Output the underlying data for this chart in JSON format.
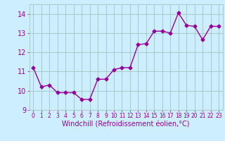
{
  "x": [
    0,
    1,
    2,
    3,
    4,
    5,
    6,
    7,
    8,
    9,
    10,
    11,
    12,
    13,
    14,
    15,
    16,
    17,
    18,
    19,
    20,
    21,
    22,
    23
  ],
  "y": [
    11.2,
    10.2,
    10.3,
    9.9,
    9.9,
    9.9,
    9.55,
    9.55,
    10.6,
    10.6,
    11.1,
    11.2,
    11.2,
    12.4,
    12.45,
    13.1,
    13.1,
    13.0,
    14.05,
    13.4,
    13.35,
    12.65,
    13.35,
    13.35
  ],
  "line_color": "#990099",
  "marker": "D",
  "markersize": 2.5,
  "linewidth": 1,
  "xlabel": "Windchill (Refroidissement éolien,°C)",
  "xlim": [
    -0.5,
    23.5
  ],
  "ylim": [
    9.0,
    14.5
  ],
  "yticks": [
    9,
    10,
    11,
    12,
    13,
    14
  ],
  "xticks": [
    0,
    1,
    2,
    3,
    4,
    5,
    6,
    7,
    8,
    9,
    10,
    11,
    12,
    13,
    14,
    15,
    16,
    17,
    18,
    19,
    20,
    21,
    22,
    23
  ],
  "bg_color": "#cceeff",
  "grid_color": "#aacccc",
  "xlabel_fontsize": 7,
  "ytick_fontsize": 7,
  "xtick_fontsize": 5.5,
  "label_color": "#990099"
}
